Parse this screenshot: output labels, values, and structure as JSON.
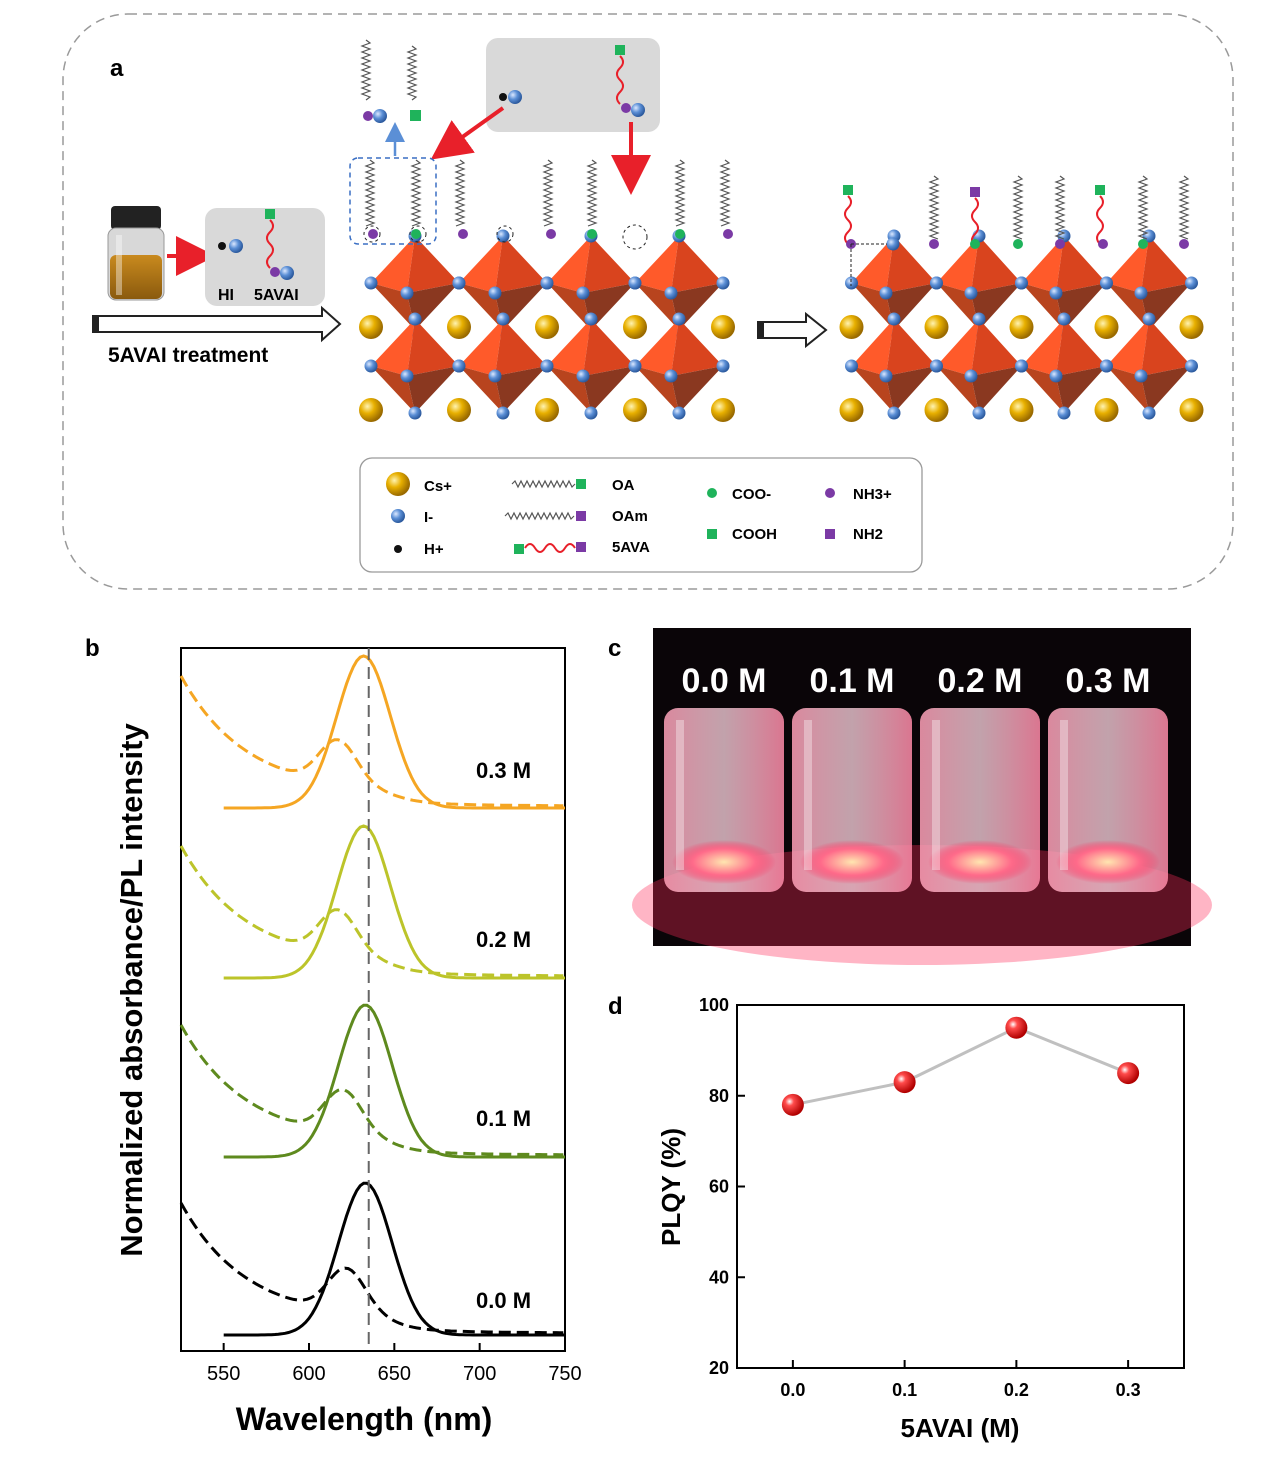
{
  "panel_a": {
    "label": "a",
    "treatment_label": "5AVAI treatment",
    "reagent_hi": "HI",
    "reagent_5avai": "5AVAI",
    "legend": {
      "cs": "Cs+",
      "iodide": "I-",
      "proton": "H+",
      "oa": "OA",
      "oam": "OAm",
      "ava": "5AVA",
      "coo": "COO-",
      "cooh": "COOH",
      "nh3": "NH3+",
      "nh2": "NH2"
    },
    "colors": {
      "octahedron": "#e8502a",
      "cs": "#e0a800",
      "iodide": "#5b8fd6",
      "green": "#1fb35b",
      "purple": "#7b3aa5",
      "red": "#e8202a"
    }
  },
  "panel_b": {
    "label": "b",
    "ylabel": "Normalized absorbance/PL intensity",
    "xlabel": "Wavelength (nm)",
    "xticks": [
      "550",
      "600",
      "650",
      "700",
      "750"
    ],
    "xlim": [
      525,
      750
    ],
    "dashed_line_nm": 635
  },
  "panel_c": {
    "label": "c",
    "vials": [
      "0.0 M",
      "0.1 M",
      "0.2 M",
      "0.3 M"
    ]
  },
  "panel_d": {
    "label": "d",
    "ylabel": "PLQY (%)",
    "xlabel": "5AVAI (M)",
    "xticks": [
      "0.0",
      "0.1",
      "0.2",
      "0.3"
    ],
    "yticks": [
      "20",
      "40",
      "60",
      "80",
      "100"
    ]
  },
  "chart_data": [
    {
      "type": "line",
      "panel": "b",
      "title": "",
      "xlabel": "Wavelength (nm)",
      "ylabel": "Normalized absorbance/PL intensity",
      "xlim": [
        525,
        750
      ],
      "series": [
        {
          "name": "0.0 M",
          "color": "#000000",
          "pl_peak_nm": 633,
          "pl_fwhm_nm": 37,
          "abs_peak_nm": 622
        },
        {
          "name": "0.1 M",
          "color": "#5e8a1e",
          "pl_peak_nm": 633,
          "pl_fwhm_nm": 37,
          "abs_peak_nm": 620
        },
        {
          "name": "0.2 M",
          "color": "#bcc42a",
          "pl_peak_nm": 632,
          "pl_fwhm_nm": 37,
          "abs_peak_nm": 617
        },
        {
          "name": "0.3 M",
          "color": "#f5a623",
          "pl_peak_nm": 632,
          "pl_fwhm_nm": 37,
          "abs_peak_nm": 617
        }
      ]
    },
    {
      "type": "scatter",
      "panel": "d",
      "title": "",
      "xlabel": "5AVAI (M)",
      "ylabel": "PLQY (%)",
      "x": [
        0.0,
        0.1,
        0.2,
        0.3
      ],
      "y": [
        78,
        83,
        95,
        85
      ],
      "xlim": [
        -0.05,
        0.35
      ],
      "ylim": [
        20,
        100
      ],
      "marker_color": "#e8202a",
      "line_color": "#c0c0c0"
    }
  ]
}
